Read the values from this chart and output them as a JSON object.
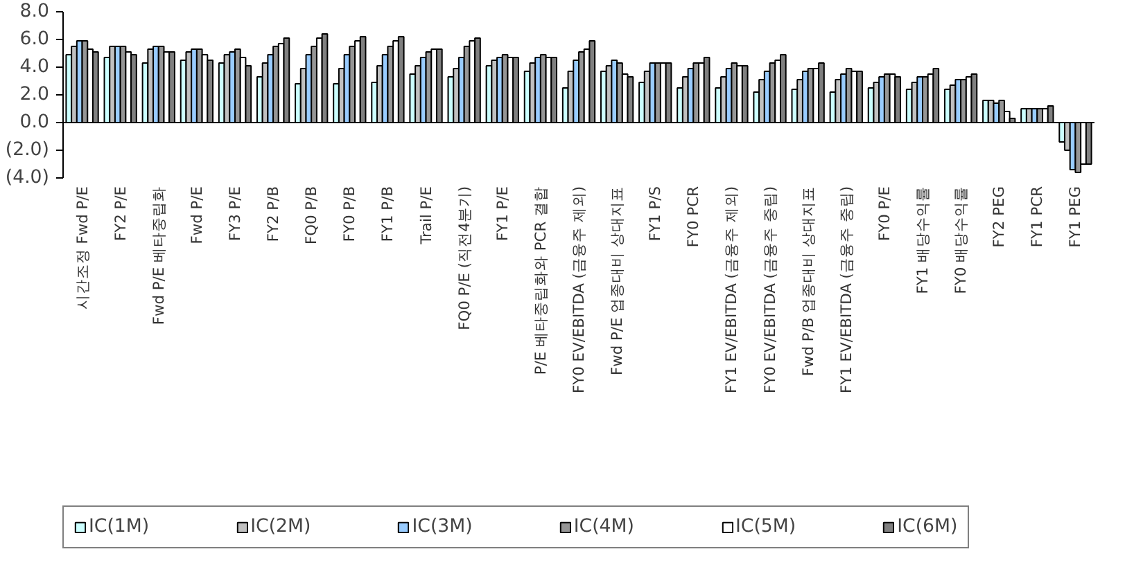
{
  "chart_data": {
    "type": "bar",
    "categories": [
      "시간조정 Fwd P/E",
      "FY2 P/E",
      "Fwd P/E 베타중립화",
      "Fwd P/E",
      "FY3 P/E",
      "FY2 P/B",
      "FQ0 P/B",
      "FY0 P/B",
      "FY1 P/B",
      "Trail P/E",
      "FQ0 P/E (직전4분기)",
      "FY1 P/E",
      "P/E 베타중립화와 PCR 결합",
      "FY0 EV/EBITDA (금융주 제외)",
      "Fwd P/E 업종대비 상대지표",
      "FY1 P/S",
      "FY0 PCR",
      "FY1 EV/EBITDA (금융주 제외)",
      "FY0 EV/EBITDA (금융주 중립)",
      "Fwd P/B 업종대비 상대지표",
      "FY1 EV/EBITDA (금융주 중립)",
      "FY0 P/E",
      "FY1 배당수익률",
      "FY0 배당수익률",
      "FY2 PEG",
      "FY1 PCR",
      "FY1 PEG"
    ],
    "series": [
      {
        "name": "IC(1M)",
        "color": "#ccffff",
        "values": [
          4.9,
          4.7,
          4.3,
          4.5,
          4.3,
          3.3,
          2.8,
          2.8,
          2.9,
          3.5,
          3.3,
          4.1,
          3.7,
          2.5,
          3.7,
          2.9,
          2.5,
          2.5,
          2.2,
          2.4,
          2.2,
          2.5,
          2.4,
          2.4,
          1.6,
          1.0,
          -1.4
        ]
      },
      {
        "name": "IC(2M)",
        "color": "#c0c0c0",
        "values": [
          5.5,
          5.5,
          5.3,
          5.1,
          4.9,
          4.3,
          3.9,
          3.9,
          4.1,
          4.1,
          3.9,
          4.5,
          4.3,
          3.7,
          4.1,
          3.7,
          3.3,
          3.3,
          3.1,
          3.1,
          3.1,
          2.9,
          2.9,
          2.7,
          1.6,
          1.0,
          -2.0
        ]
      },
      {
        "name": "IC(3M)",
        "color": "#99ccff",
        "values": [
          5.9,
          5.5,
          5.5,
          5.3,
          5.1,
          4.9,
          4.9,
          4.9,
          4.9,
          4.7,
          4.7,
          4.7,
          4.7,
          4.5,
          4.5,
          4.3,
          3.9,
          3.9,
          3.7,
          3.7,
          3.5,
          3.3,
          3.3,
          3.1,
          1.4,
          1.0,
          -3.4
        ]
      },
      {
        "name": "IC(4M)",
        "color": "#969696",
        "values": [
          5.9,
          5.5,
          5.5,
          5.3,
          5.3,
          5.5,
          5.5,
          5.5,
          5.5,
          5.1,
          5.5,
          4.9,
          4.9,
          5.1,
          4.3,
          4.3,
          4.3,
          4.3,
          4.3,
          3.9,
          3.9,
          3.5,
          3.3,
          3.1,
          1.6,
          1.0,
          -3.6
        ]
      },
      {
        "name": "IC(5M)",
        "color": "#ffffff",
        "values": [
          5.3,
          5.1,
          5.1,
          4.9,
          4.7,
          5.7,
          6.1,
          5.9,
          5.9,
          5.3,
          5.9,
          4.7,
          4.7,
          5.3,
          3.5,
          4.3,
          4.3,
          4.1,
          4.5,
          3.9,
          3.7,
          3.5,
          3.5,
          3.3,
          0.8,
          1.0,
          -3.0
        ]
      },
      {
        "name": "IC(6M)",
        "color": "#808080",
        "values": [
          5.1,
          4.9,
          5.1,
          4.5,
          4.1,
          6.1,
          6.4,
          6.2,
          6.2,
          5.3,
          6.1,
          4.7,
          4.7,
          5.9,
          3.3,
          4.3,
          4.7,
          4.1,
          4.9,
          4.3,
          3.7,
          3.3,
          3.9,
          3.5,
          0.3,
          1.2,
          -3.0
        ]
      }
    ],
    "ylim": [
      -4,
      8
    ],
    "yticks": [
      {
        "value": -4,
        "label": "(4.0)"
      },
      {
        "value": -2,
        "label": "(2.0)"
      },
      {
        "value": 0,
        "label": "0.0"
      },
      {
        "value": 2,
        "label": "2.0"
      },
      {
        "value": 4,
        "label": "4.0"
      },
      {
        "value": 6,
        "label": "6.0"
      },
      {
        "value": 8,
        "label": "8.0"
      }
    ],
    "legend": "bottom"
  }
}
